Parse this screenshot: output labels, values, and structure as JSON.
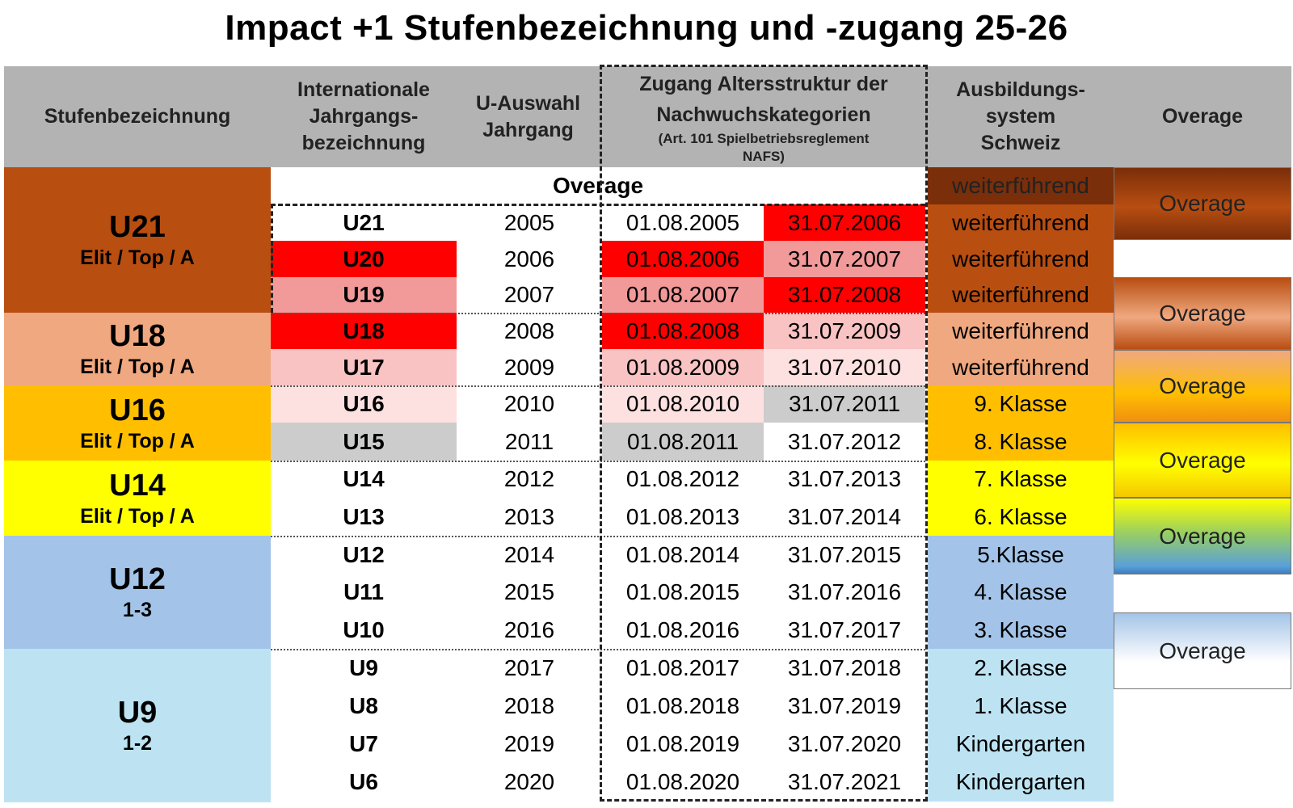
{
  "title": "Impact +1 Stufenbezeichnung und -zugang 25-26",
  "headers": {
    "stufenbezeichnung": "Stufenbezeichnung",
    "international": [
      "Internationale",
      "Jahrgangs-",
      "bezeichnung"
    ],
    "u_auswahl": [
      "U-Auswahl",
      "Jahrgang"
    ],
    "zugang": [
      "Zugang Altersstruktur der",
      "Nachwuchskategorien"
    ],
    "zugang_sub": [
      "(Art. 101 Spielbetriebsreglement",
      "NAFS)"
    ],
    "ausbildung": [
      "Ausbildungs-",
      "system",
      "Schweiz"
    ],
    "overage": "Overage"
  },
  "overage_row": {
    "label": "Overage",
    "ausbildung": "weiterführend"
  },
  "groups": [
    {
      "name": "U21",
      "sub": "Elit / Top / A",
      "color": "#b94e11"
    },
    {
      "name": "U18",
      "sub": "Elit / Top / A",
      "color": "#f0a880"
    },
    {
      "name": "U16",
      "sub": "Elit / Top / A",
      "color": "#ffbf00"
    },
    {
      "name": "U14",
      "sub": "Elit / Top / A",
      "color": "#ffff00"
    },
    {
      "name": "U12",
      "sub": "1-3",
      "color": "#a3c4e8"
    },
    {
      "name": "U9",
      "sub": "1-2",
      "color": "#bde3f3"
    }
  ],
  "rows": [
    {
      "intl": "U21",
      "year": "2005",
      "from": "01.08.2005",
      "to": "31.07.2006",
      "ausbildung": "weiterführend"
    },
    {
      "intl": "U20",
      "year": "2006",
      "from": "01.08.2006",
      "to": "31.07.2007",
      "ausbildung": "weiterführend"
    },
    {
      "intl": "U19",
      "year": "2007",
      "from": "01.08.2007",
      "to": "31.07.2008",
      "ausbildung": "weiterführend"
    },
    {
      "intl": "U18",
      "year": "2008",
      "from": "01.08.2008",
      "to": "31.07.2009",
      "ausbildung": "weiterführend"
    },
    {
      "intl": "U17",
      "year": "2009",
      "from": "01.08.2009",
      "to": "31.07.2010",
      "ausbildung": "weiterführend"
    },
    {
      "intl": "U16",
      "year": "2010",
      "from": "01.08.2010",
      "to": "31.07.2011",
      "ausbildung": "9. Klasse"
    },
    {
      "intl": "U15",
      "year": "2011",
      "from": "01.08.2011",
      "to": "31.07.2012",
      "ausbildung": "8. Klasse"
    },
    {
      "intl": "U14",
      "year": "2012",
      "from": "01.08.2012",
      "to": "31.07.2013",
      "ausbildung": "7. Klasse"
    },
    {
      "intl": "U13",
      "year": "2013",
      "from": "01.08.2013",
      "to": "31.07.2014",
      "ausbildung": "6. Klasse"
    },
    {
      "intl": "U12",
      "year": "2014",
      "from": "01.08.2014",
      "to": "31.07.2015",
      "ausbildung": "5.Klasse"
    },
    {
      "intl": "U11",
      "year": "2015",
      "from": "01.08.2015",
      "to": "31.07.2016",
      "ausbildung": "4. Klasse"
    },
    {
      "intl": "U10",
      "year": "2016",
      "from": "01.08.2016",
      "to": "31.07.2017",
      "ausbildung": "3. Klasse"
    },
    {
      "intl": "U9",
      "year": "2017",
      "from": "01.08.2017",
      "to": "31.07.2018",
      "ausbildung": "2. Klasse"
    },
    {
      "intl": "U8",
      "year": "2018",
      "from": "01.08.2018",
      "to": "31.07.2019",
      "ausbildung": "1. Klasse"
    },
    {
      "intl": "U7",
      "year": "2019",
      "from": "01.08.2019",
      "to": "31.07.2020",
      "ausbildung": "Kindergarten"
    },
    {
      "intl": "U6",
      "year": "2020",
      "from": "01.08.2020",
      "to": "31.07.2021",
      "ausbildung": "Kindergarten"
    }
  ],
  "overage_col": [
    "Overage",
    "Overage",
    "Overage",
    "Overage",
    "Overage",
    "Overage"
  ],
  "colors": {
    "header_gray": "#b3b3b3",
    "red": "#ff0000",
    "light_red": "#f2999a",
    "pale_red": "#f9c3c3",
    "palest_red": "#fde0e0",
    "gray_cell": "#cccccc"
  }
}
